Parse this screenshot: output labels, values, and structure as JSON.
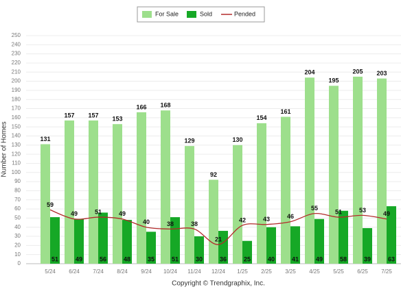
{
  "chart_data": {
    "type": "bar",
    "ylabel": "Number of Homes",
    "footer": "Copyright © Trendgraphix, Inc.",
    "categories": [
      "5/24",
      "6/24",
      "7/24",
      "8/24",
      "9/24",
      "10/24",
      "11/24",
      "12/24",
      "1/25",
      "2/25",
      "3/25",
      "4/25",
      "5/25",
      "6/25",
      "7/25"
    ],
    "series": [
      {
        "name": "For Sale",
        "color": "#9ddf8c",
        "kind": "bar",
        "values": [
          131,
          157,
          157,
          153,
          166,
          168,
          129,
          92,
          130,
          154,
          161,
          204,
          195,
          205,
          203
        ]
      },
      {
        "name": "Sold",
        "color": "#16a826",
        "kind": "bar",
        "values": [
          51,
          49,
          56,
          48,
          35,
          51,
          30,
          36,
          25,
          40,
          41,
          49,
          58,
          39,
          63
        ]
      },
      {
        "name": "Pended",
        "color": "#b22a2a",
        "kind": "line",
        "values": [
          59,
          49,
          51,
          49,
          40,
          38,
          38,
          21,
          42,
          43,
          46,
          55,
          51,
          53,
          49
        ]
      }
    ],
    "ylim": [
      0,
      250
    ],
    "yticks": [
      0,
      10,
      20,
      30,
      40,
      50,
      60,
      70,
      80,
      90,
      100,
      110,
      120,
      130,
      140,
      150,
      160,
      170,
      180,
      190,
      200,
      210,
      220,
      230,
      240,
      250
    ],
    "grid": true,
    "legend": "top"
  }
}
